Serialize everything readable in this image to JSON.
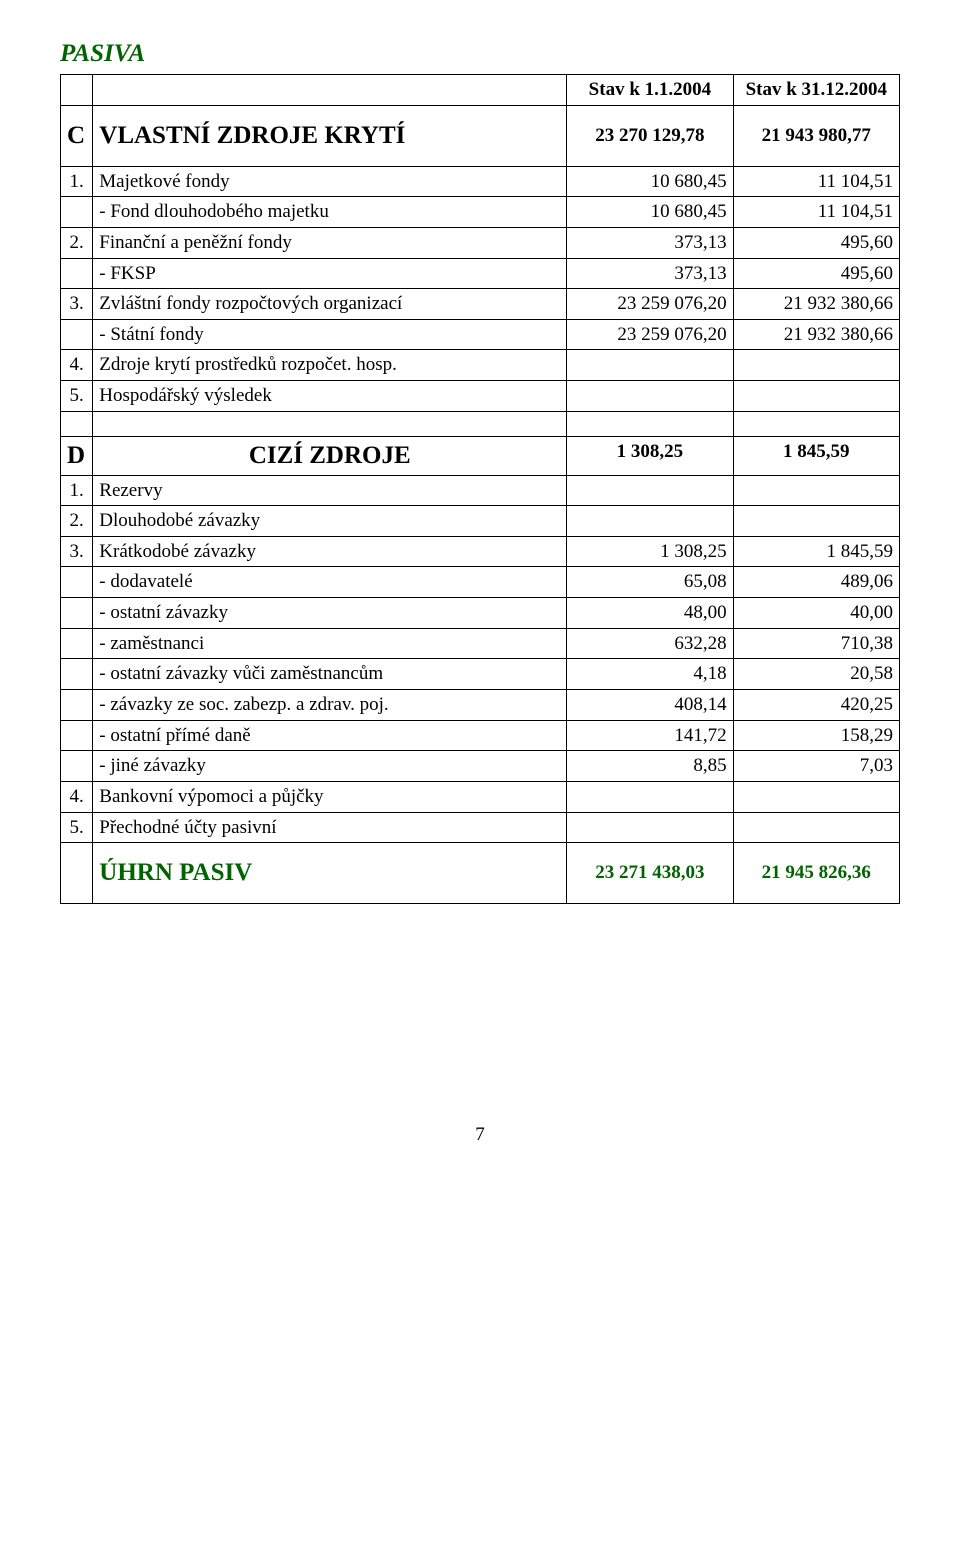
{
  "title": "PASIVA",
  "title_color": "#006400",
  "headers": {
    "col1": "Stav k 1.1.2004",
    "col2": "Stav k 31.12.2004"
  },
  "sectionC": {
    "code": "C",
    "label": "VLASTNÍ ZDROJE KRYTÍ",
    "v1": "23 270 129,78",
    "v2": "21 943 980,77",
    "row1": {
      "code": "1.",
      "label": "Majetkové fondy",
      "v1": "10 680,45",
      "v2": "11 104,51"
    },
    "row1a": {
      "label": "- Fond dlouhodobého majetku",
      "v1": "10 680,45",
      "v2": "11 104,51"
    },
    "row2": {
      "code": "2.",
      "label": "Finanční a peněžní fondy",
      "v1": "373,13",
      "v2": "495,60"
    },
    "row2a": {
      "label": "- FKSP",
      "v1": "373,13",
      "v2": "495,60"
    },
    "row3": {
      "code": "3.",
      "label": "Zvláštní fondy rozpočtových organizací",
      "v1": "23 259 076,20",
      "v2": "21 932 380,66"
    },
    "row3a": {
      "label": "- Státní fondy",
      "v1": "23 259 076,20",
      "v2": "21 932 380,66"
    },
    "row4": {
      "code": "4.",
      "label": "Zdroje krytí prostředků rozpočet. hosp."
    },
    "row5": {
      "code": "5.",
      "label": "Hospodářský výsledek"
    }
  },
  "sectionD": {
    "code": "D",
    "label": "CIZÍ ZDROJE",
    "v1": "1 308,25",
    "v2": "1 845,59",
    "row1": {
      "code": "1.",
      "label": "Rezervy"
    },
    "row2": {
      "code": "2.",
      "label": "Dlouhodobé závazky"
    },
    "row3": {
      "code": "3.",
      "label": "Krátkodobé závazky",
      "v1": "1 308,25",
      "v2": "1 845,59"
    },
    "row3a": {
      "label": "- dodavatelé",
      "v1": "65,08",
      "v2": "489,06"
    },
    "row3b": {
      "label": "- ostatní závazky",
      "v1": "48,00",
      "v2": "40,00"
    },
    "row3c": {
      "label": "- zaměstnanci",
      "v1": "632,28",
      "v2": "710,38"
    },
    "row3d": {
      "label": "- ostatní závazky vůči zaměstnancům",
      "v1": "4,18",
      "v2": "20,58"
    },
    "row3e": {
      "label": "- závazky ze soc. zabezp. a zdrav. poj.",
      "v1": "408,14",
      "v2": "420,25"
    },
    "row3f": {
      "label": "- ostatní přímé daně",
      "v1": "141,72",
      "v2": "158,29"
    },
    "row3g": {
      "label": "- jiné závazky",
      "v1": "8,85",
      "v2": "7,03"
    },
    "row4": {
      "code": "4.",
      "label": "Bankovní výpomoci a půjčky"
    },
    "row5": {
      "code": "5.",
      "label": "Přechodné účty pasivní"
    }
  },
  "total": {
    "label": "ÚHRN PASIV",
    "v1": "23 271 438,03",
    "v2": "21 945 826,36",
    "color": "#006400"
  },
  "page_number": "7"
}
